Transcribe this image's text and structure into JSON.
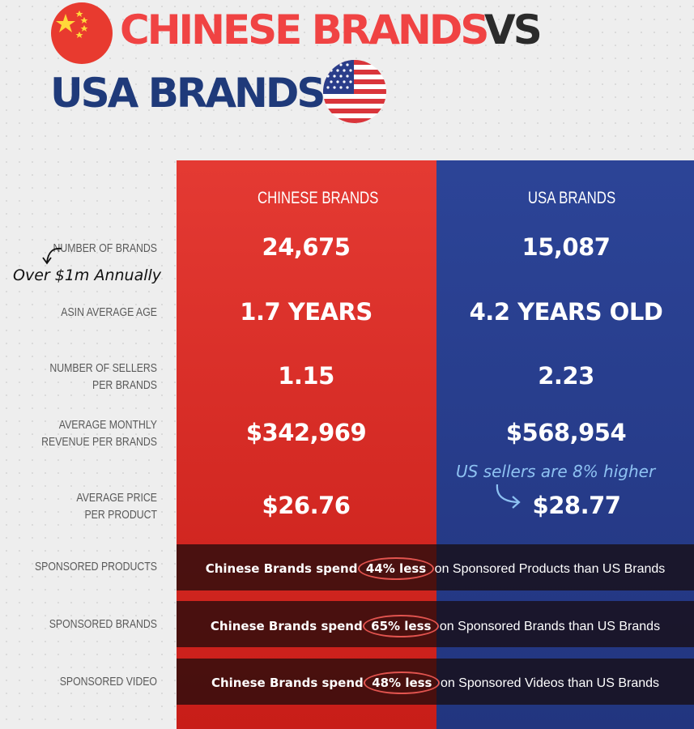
{
  "title": {
    "line1": "CHINESE BRANDS",
    "vs": "VS",
    "line2": "USA BRANDS"
  },
  "icons": {
    "china": "china-flag-icon",
    "usa": "usa-flag-icon"
  },
  "colors": {
    "chinese_red": "#e43a33",
    "usa_blue": "#2c4497",
    "title_red": "#f04343",
    "title_blue": "#1f3a7a"
  },
  "columns": {
    "chinese": "CHINESE BRANDS",
    "usa": "USA BRANDS"
  },
  "rows": [
    {
      "label1": "NUMBER OF BRANDS",
      "label2": "",
      "chinese": "24,675",
      "usa": "15,087"
    },
    {
      "label1": "ASIN AVERAGE AGE",
      "label2": "",
      "chinese": "1.7 YEARS",
      "usa": "4.2 YEARS OLD"
    },
    {
      "label1": "NUMBER OF SELLERS",
      "label2": "PER BRANDS",
      "chinese": "1.15",
      "usa": "2.23"
    },
    {
      "label1": "AVERAGE MONTHLY",
      "label2": "REVENUE PER BRANDS",
      "chinese": "$342,969",
      "usa": "$568,954"
    },
    {
      "label1": "AVERAGE PRICE",
      "label2": "PER PRODUCT",
      "chinese": "$26.76",
      "usa": "$28.77"
    }
  ],
  "notes": {
    "over": "Over $1m Annually",
    "us_higher": "US sellers are 8% higher"
  },
  "ads": [
    {
      "label": "SPONSORED PRODUCTS",
      "lead": "Chinese Brands spend",
      "pct": "44% less",
      "rest": "on Sponsored Products than US Brands"
    },
    {
      "label": "SPONSORED BRANDS",
      "lead": "Chinese Brands spend",
      "pct": "65% less",
      "rest": "on Sponsored Brands than US Brands"
    },
    {
      "label": "SPONSORED VIDEO",
      "lead": "Chinese Brands spend",
      "pct": "48% less",
      "rest": "on Sponsored Videos than US Brands"
    }
  ]
}
